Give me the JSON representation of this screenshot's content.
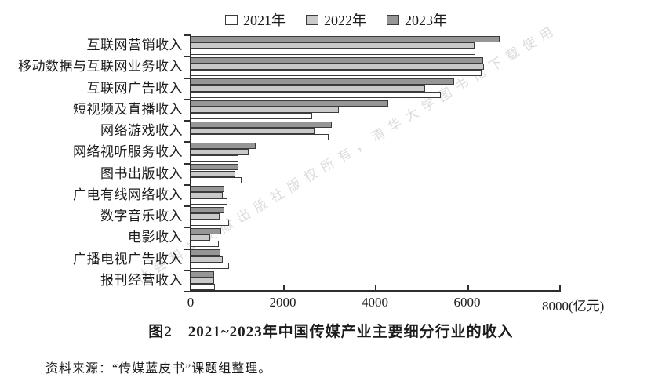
{
  "watermark": {
    "text": "社会科学文献出版社版权所有，清华大学图书馆下载使用",
    "color": "#dcdcdc"
  },
  "chart_data": {
    "type": "bar",
    "orientation": "horizontal",
    "title": "图2　2021~2023年中国传媒产业主要细分行业的收入",
    "unit": "(亿元)",
    "xlim": [
      0,
      8000
    ],
    "xticks": [
      0,
      2000,
      4000,
      6000,
      8000
    ],
    "grid": false,
    "legend_position": "top",
    "bar_border_color": "#3b3b3b",
    "categories": [
      "互联网营销收入",
      "移动数据与互联网业务收入",
      "互联网广告收入",
      "短视频及直播收入",
      "网络游戏收入",
      "网络视听服务收入",
      "图书出版收入",
      "广电有线网络收入",
      "数字音乐收入",
      "电影收入",
      "广播电视广告收入",
      "报刊经营收入"
    ],
    "series": [
      {
        "key": "2021",
        "name": "2021年",
        "color": "#ffffff",
        "values": [
          6150,
          6280,
          5400,
          2600,
          2960,
          1000,
          1070,
          770,
          800,
          580,
          800,
          500
        ]
      },
      {
        "key": "2022",
        "name": "2022年",
        "color": "#c9c9c9",
        "values": [
          6130,
          6330,
          5060,
          3180,
          2660,
          1230,
          940,
          660,
          600,
          390,
          660,
          480
        ]
      },
      {
        "key": "2023",
        "name": "2023年",
        "color": "#969696",
        "values": [
          6670,
          6310,
          5690,
          4250,
          3030,
          1380,
          1000,
          700,
          700,
          630,
          620,
          480
        ]
      }
    ],
    "group_order_top_to_bottom": [
      "2023年",
      "2022年",
      "2021年"
    ]
  },
  "caption": {
    "text": "图2　2021~2023年中国传媒产业主要细分行业的收入"
  },
  "source": {
    "text": "资料来源：“传媒蓝皮书”课题组整理。"
  }
}
